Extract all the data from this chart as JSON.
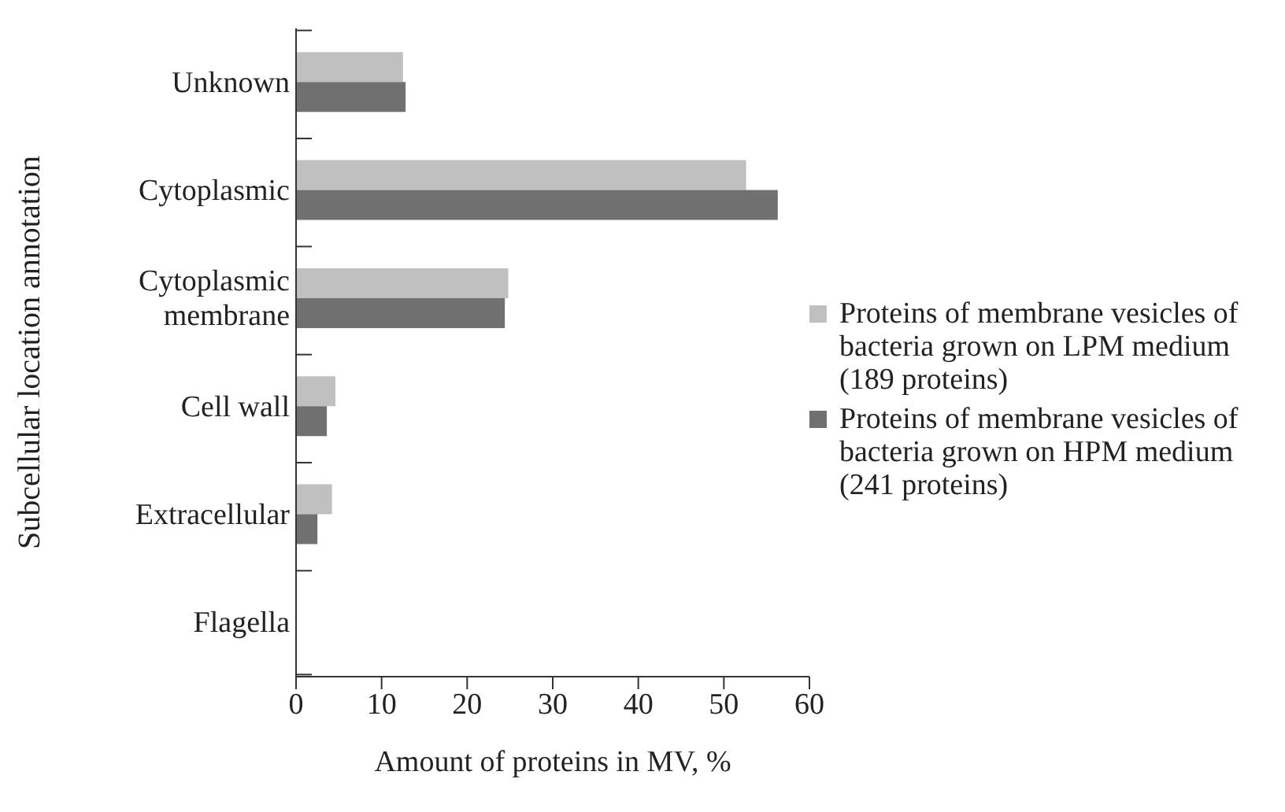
{
  "chart_data": {
    "type": "bar",
    "orientation": "horizontal",
    "xlabel": "Amount of proteins in MV, %",
    "ylabel": "Subcellular location annotation",
    "categories": [
      "Unknown",
      "Cytoplasmic",
      "Cytoplasmic membrane",
      "Cell wall",
      "Extracellular",
      "Flagella"
    ],
    "series": [
      {
        "name": "Proteins of membrane vesicles of bacteria grown on LPM medium (189 proteins)",
        "color": "#c0c0c0",
        "values": [
          12.5,
          52.6,
          24.8,
          4.6,
          4.2,
          null
        ]
      },
      {
        "name": "Proteins of membrane vesicles of bacteria grown on HPM medium (241 proteins)",
        "color": "#707070",
        "values": [
          12.8,
          56.3,
          24.4,
          3.6,
          2.5,
          0
        ]
      }
    ],
    "xlim": [
      0,
      60
    ],
    "xticks": [
      0,
      10,
      20,
      30,
      40,
      50,
      60
    ],
    "legend": "right",
    "grid": false
  }
}
